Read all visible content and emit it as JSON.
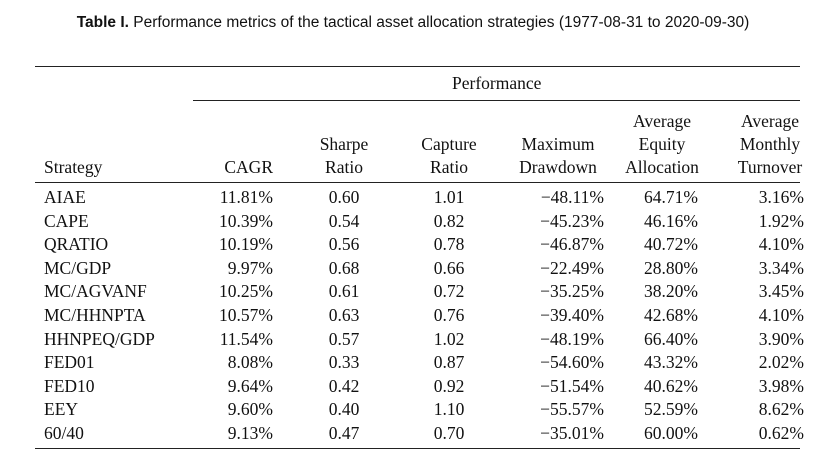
{
  "caption": {
    "label": "Table I.",
    "text": "Performance metrics of the tactical asset allocation strategies (1977-08-31 to 2020-09-30)"
  },
  "table": {
    "group_header": "Performance",
    "columns": {
      "strategy": [
        "Strategy"
      ],
      "cagr": [
        "CAGR"
      ],
      "sharpe": [
        "Sharpe",
        "Ratio"
      ],
      "capture": [
        "Capture",
        "Ratio"
      ],
      "max_drawdown": [
        "Maximum",
        "Drawdown"
      ],
      "avg_equity": [
        "Average",
        "Equity",
        "Allocation"
      ],
      "avg_turnover": [
        "Average",
        "Monthly",
        "Turnover"
      ]
    },
    "rows": [
      {
        "strategy": "AIAE",
        "cagr": "11.81%",
        "sharpe": "0.60",
        "capture": "1.01",
        "max_drawdown": "−48.11%",
        "avg_equity": "64.71%",
        "avg_turnover": "3.16%"
      },
      {
        "strategy": "CAPE",
        "cagr": "10.39%",
        "sharpe": "0.54",
        "capture": "0.82",
        "max_drawdown": "−45.23%",
        "avg_equity": "46.16%",
        "avg_turnover": "1.92%"
      },
      {
        "strategy": "QRATIO",
        "cagr": "10.19%",
        "sharpe": "0.56",
        "capture": "0.78",
        "max_drawdown": "−46.87%",
        "avg_equity": "40.72%",
        "avg_turnover": "4.10%"
      },
      {
        "strategy": "MC/GDP",
        "cagr": "9.97%",
        "sharpe": "0.68",
        "capture": "0.66",
        "max_drawdown": "−22.49%",
        "avg_equity": "28.80%",
        "avg_turnover": "3.34%"
      },
      {
        "strategy": "MC/AGVANF",
        "cagr": "10.25%",
        "sharpe": "0.61",
        "capture": "0.72",
        "max_drawdown": "−35.25%",
        "avg_equity": "38.20%",
        "avg_turnover": "3.45%"
      },
      {
        "strategy": "MC/HHNPTA",
        "cagr": "10.57%",
        "sharpe": "0.63",
        "capture": "0.76",
        "max_drawdown": "−39.40%",
        "avg_equity": "42.68%",
        "avg_turnover": "4.10%"
      },
      {
        "strategy": "HHNPEQ/GDP",
        "cagr": "11.54%",
        "sharpe": "0.57",
        "capture": "1.02",
        "max_drawdown": "−48.19%",
        "avg_equity": "66.40%",
        "avg_turnover": "3.90%"
      },
      {
        "strategy": "FED01",
        "cagr": "8.08%",
        "sharpe": "0.33",
        "capture": "0.87",
        "max_drawdown": "−54.60%",
        "avg_equity": "43.32%",
        "avg_turnover": "2.02%"
      },
      {
        "strategy": "FED10",
        "cagr": "9.64%",
        "sharpe": "0.42",
        "capture": "0.92",
        "max_drawdown": "−51.54%",
        "avg_equity": "40.62%",
        "avg_turnover": "3.98%"
      },
      {
        "strategy": "EEY",
        "cagr": "9.60%",
        "sharpe": "0.40",
        "capture": "1.10",
        "max_drawdown": "−55.57%",
        "avg_equity": "52.59%",
        "avg_turnover": "8.62%"
      },
      {
        "strategy": "60/40",
        "cagr": "9.13%",
        "sharpe": "0.47",
        "capture": "0.70",
        "max_drawdown": "−35.01%",
        "avg_equity": "60.00%",
        "avg_turnover": "0.62%"
      }
    ]
  }
}
